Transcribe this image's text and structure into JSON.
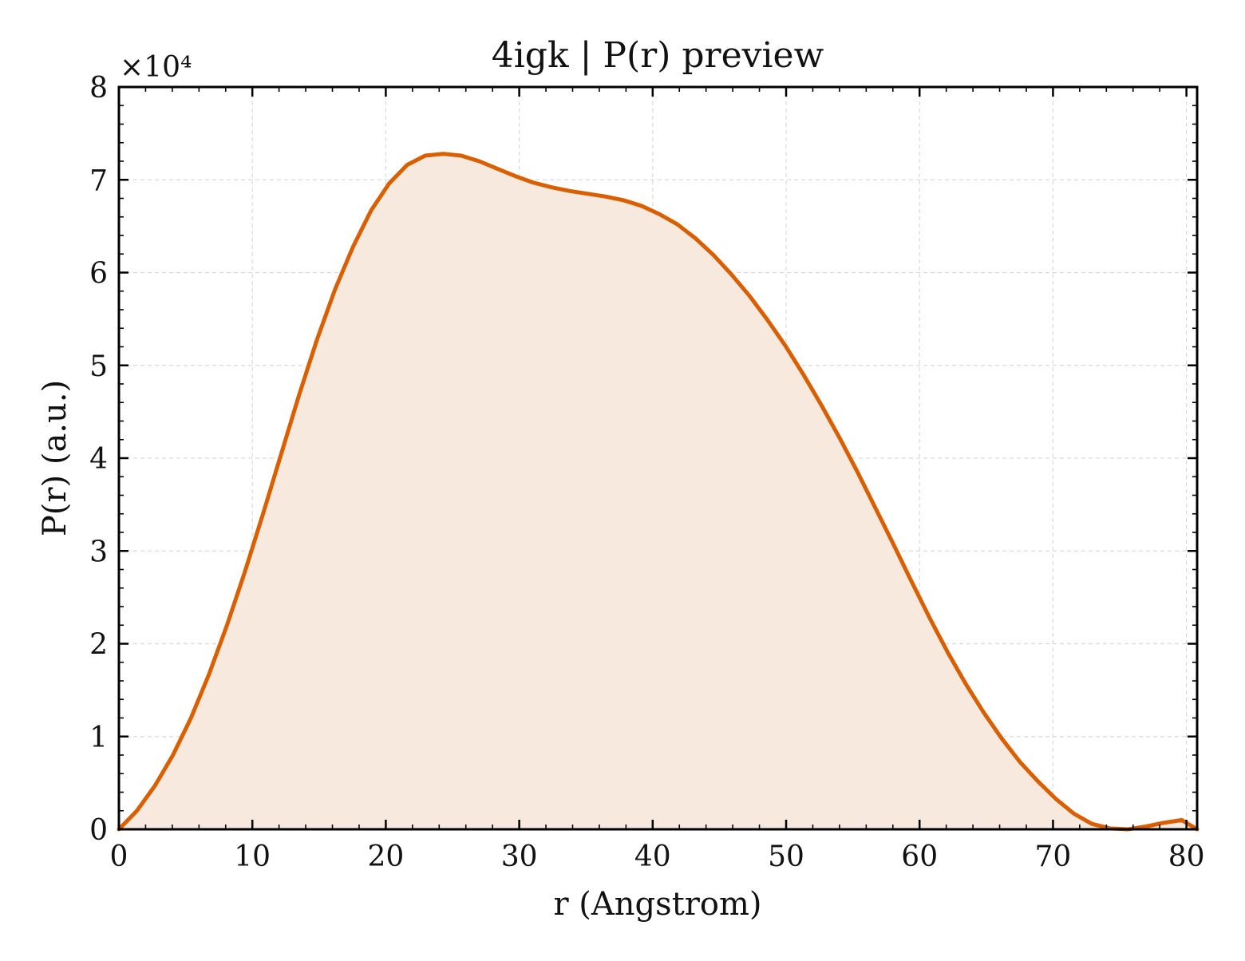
{
  "chart_data": {
    "type": "area",
    "title": "4igk | P(r) preview",
    "xlabel": "r (Angstrom)",
    "ylabel": "P(r) (a.u.)",
    "y_multiplier_label": "×10⁴",
    "xlim": [
      0,
      80.8
    ],
    "ylim": [
      0,
      8
    ],
    "xticks": [
      0,
      10,
      20,
      30,
      40,
      50,
      60,
      70,
      80
    ],
    "yticks": [
      0,
      1,
      2,
      3,
      4,
      5,
      6,
      7,
      8
    ],
    "grid": true,
    "colors": {
      "line": "#d95f02",
      "fill": "#f8e9de",
      "grid": "#d9d9d9",
      "axis": "#000000"
    },
    "series": [
      {
        "x": [
          0,
          1.35,
          2.7,
          4.05,
          5.4,
          6.75,
          8.1,
          9.45,
          10.8,
          12.15,
          13.5,
          14.85,
          16.2,
          17.55,
          18.9,
          20.25,
          21.6,
          22.95,
          24.3,
          25.65,
          27.0,
          28.35,
          29.7,
          31.05,
          32.4,
          33.75,
          35.1,
          36.45,
          37.8,
          39.15,
          40.5,
          41.85,
          43.2,
          44.55,
          45.9,
          47.25,
          48.6,
          49.95,
          51.3,
          52.65,
          54.0,
          55.35,
          56.7,
          58.05,
          59.4,
          60.75,
          62.1,
          63.45,
          64.8,
          66.15,
          67.5,
          68.85,
          70.2,
          71.55,
          72.9,
          74.25,
          75.6,
          76.95,
          78.3,
          79.65,
          80.8
        ],
        "values": [
          0.0,
          0.2,
          0.47,
          0.8,
          1.2,
          1.67,
          2.2,
          2.78,
          3.4,
          4.04,
          4.68,
          5.28,
          5.82,
          6.28,
          6.67,
          6.96,
          7.16,
          7.26,
          7.28,
          7.26,
          7.2,
          7.12,
          7.04,
          6.97,
          6.92,
          6.88,
          6.85,
          6.82,
          6.78,
          6.72,
          6.63,
          6.52,
          6.37,
          6.19,
          5.98,
          5.75,
          5.49,
          5.21,
          4.9,
          4.57,
          4.22,
          3.85,
          3.46,
          3.07,
          2.67,
          2.28,
          1.91,
          1.57,
          1.26,
          0.98,
          0.73,
          0.52,
          0.33,
          0.17,
          0.06,
          0.01,
          0.0,
          0.03,
          0.07,
          0.1,
          0.0
        ]
      }
    ]
  }
}
